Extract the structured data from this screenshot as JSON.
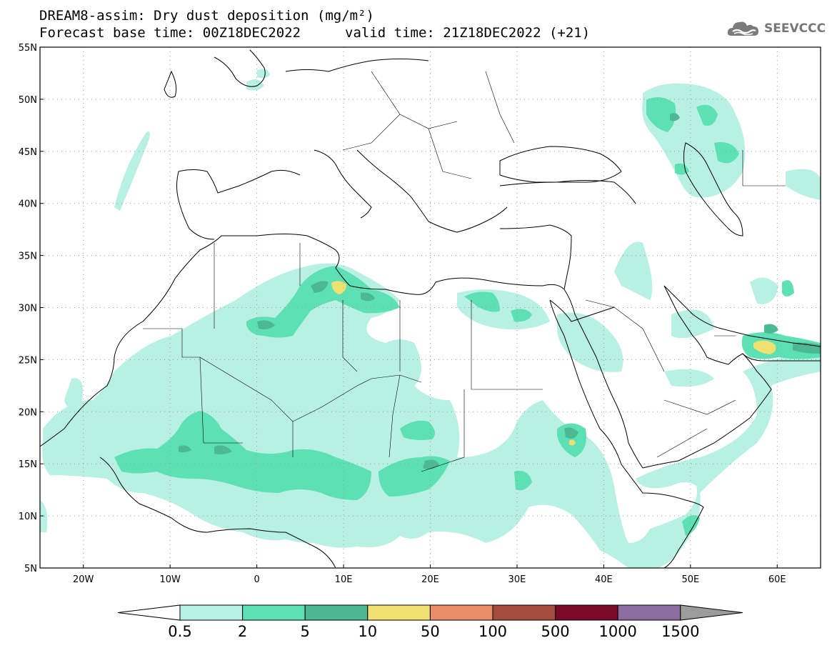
{
  "header": {
    "title": "DREAM8-assim: Dry dust deposition (mg/m²)",
    "base_time": "Forecast base time: 00Z18DEC2022",
    "valid_time": "valid time: 21Z18DEC2022 (+21)"
  },
  "logo": {
    "text": "SEEVCCC",
    "icon": "cloud-icon"
  },
  "map": {
    "lat_labels": [
      "55N",
      "50N",
      "45N",
      "40N",
      "35N",
      "30N",
      "25N",
      "20N",
      "15N",
      "10N",
      "5N"
    ],
    "lon_labels": [
      "20W",
      "10W",
      "0",
      "10E",
      "20E",
      "30E",
      "40E",
      "50E",
      "60E"
    ],
    "lon_range": [
      -25,
      65
    ],
    "lat_range": [
      5,
      55
    ],
    "grid": "dotted"
  },
  "colorbar": {
    "labels": [
      "0.5",
      "2",
      "5",
      "10",
      "50",
      "100",
      "500",
      "1000",
      "1500"
    ],
    "colors": [
      "#b9f0e4",
      "#5ce0b4",
      "#4db894",
      "#f0e070",
      "#ea8c68",
      "#a54c3e",
      "#7a0a28",
      "#8c6c9e"
    ],
    "low_color": "#ffffff",
    "high_color": "#9c9c9c"
  }
}
